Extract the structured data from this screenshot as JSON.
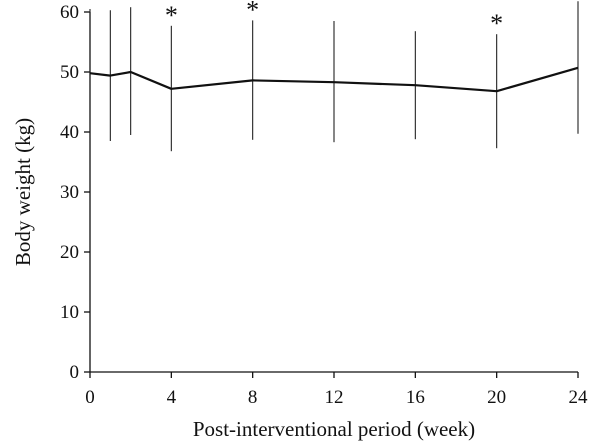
{
  "chart_data": {
    "type": "line",
    "title": "",
    "xlabel": "Post-interventional period (week)",
    "ylabel": "Body weight (kg)",
    "xlim": [
      0,
      24
    ],
    "ylim": [
      0,
      60
    ],
    "xticks": [
      0,
      4,
      8,
      12,
      16,
      20,
      24
    ],
    "yticks": [
      0,
      10,
      20,
      30,
      40,
      50,
      60
    ],
    "grid": false,
    "legend": "none",
    "series": [
      {
        "x": [
          0,
          1,
          2,
          4,
          8,
          12,
          16,
          20,
          24
        ],
        "y": [
          49.8,
          49.4,
          50.0,
          47.2,
          48.6,
          48.3,
          47.8,
          46.8,
          50.7
        ],
        "err_low": [
          39.0,
          38.5,
          39.5,
          36.8,
          38.7,
          38.3,
          38.8,
          37.3,
          39.7
        ],
        "err_high": [
          60.5,
          60.3,
          60.8,
          57.7,
          58.6,
          58.5,
          56.8,
          56.3,
          61.8
        ]
      }
    ],
    "annotations": [
      {
        "x": 4,
        "text": "*"
      },
      {
        "x": 8,
        "text": "*"
      },
      {
        "x": 20,
        "text": "*"
      }
    ]
  }
}
